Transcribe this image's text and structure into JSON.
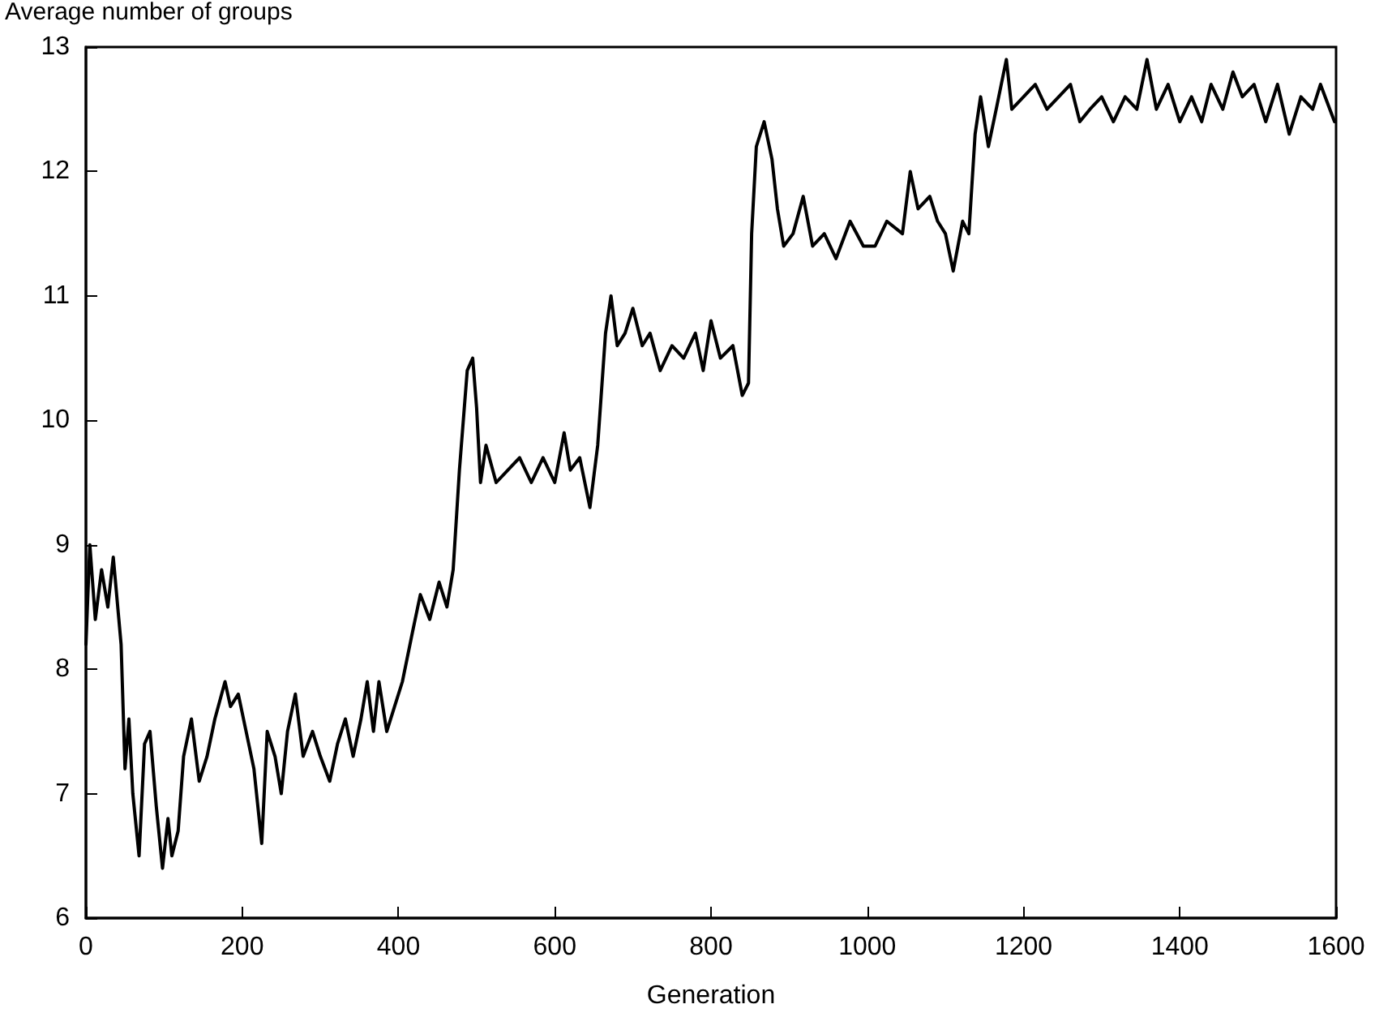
{
  "chart_data": {
    "type": "line",
    "ylabel": "Average number of groups",
    "xlabel": "Generation",
    "xlim": [
      0,
      1600
    ],
    "xticks": [
      0,
      200,
      400,
      600,
      800,
      1000,
      1200,
      1400,
      1600
    ],
    "ylim": [
      6,
      13
    ],
    "yticks": [
      6,
      7,
      8,
      9,
      10,
      11,
      12,
      13
    ],
    "grid": false,
    "marker": "none",
    "line_style": "solid",
    "series": [
      {
        "color": "#000000",
        "x": [
          0,
          5,
          12,
          20,
          28,
          35,
          45,
          50,
          55,
          60,
          68,
          75,
          82,
          90,
          98,
          105,
          110,
          118,
          125,
          135,
          145,
          155,
          165,
          178,
          185,
          195,
          205,
          215,
          225,
          232,
          242,
          250,
          258,
          268,
          278,
          290,
          300,
          312,
          322,
          332,
          342,
          352,
          360,
          368,
          375,
          385,
          395,
          405,
          418,
          428,
          440,
          452,
          462,
          470,
          478,
          488,
          495,
          500,
          505,
          512,
          525,
          540,
          555,
          570,
          585,
          600,
          612,
          620,
          632,
          645,
          655,
          665,
          672,
          680,
          690,
          700,
          712,
          722,
          735,
          750,
          765,
          780,
          790,
          800,
          812,
          828,
          840,
          848,
          852,
          858,
          868,
          878,
          885,
          893,
          905,
          918,
          930,
          945,
          960,
          978,
          995,
          1010,
          1025,
          1045,
          1055,
          1065,
          1080,
          1090,
          1100,
          1110,
          1122,
          1130,
          1138,
          1145,
          1155,
          1165,
          1178,
          1185,
          1200,
          1215,
          1230,
          1245,
          1260,
          1272,
          1285,
          1300,
          1315,
          1330,
          1345,
          1358,
          1370,
          1385,
          1400,
          1415,
          1428,
          1440,
          1455,
          1468,
          1480,
          1495,
          1510,
          1525,
          1540,
          1555,
          1570,
          1580,
          1592,
          1598
        ],
        "values": [
          8.2,
          9.0,
          8.4,
          8.8,
          8.5,
          8.9,
          8.2,
          7.2,
          7.6,
          7.0,
          6.5,
          7.4,
          7.5,
          6.9,
          6.4,
          6.8,
          6.5,
          6.7,
          7.3,
          7.6,
          7.1,
          7.3,
          7.6,
          7.9,
          7.7,
          7.8,
          7.5,
          7.2,
          6.6,
          7.5,
          7.3,
          7.0,
          7.5,
          7.8,
          7.3,
          7.5,
          7.3,
          7.1,
          7.4,
          7.6,
          7.3,
          7.6,
          7.9,
          7.5,
          7.9,
          7.5,
          7.7,
          7.9,
          8.3,
          8.6,
          8.4,
          8.7,
          8.5,
          8.8,
          9.6,
          10.4,
          10.5,
          10.1,
          9.5,
          9.8,
          9.5,
          9.6,
          9.7,
          9.5,
          9.7,
          9.5,
          9.9,
          9.6,
          9.7,
          9.3,
          9.8,
          10.7,
          11.0,
          10.6,
          10.7,
          10.9,
          10.6,
          10.7,
          10.4,
          10.6,
          10.5,
          10.7,
          10.4,
          10.8,
          10.5,
          10.6,
          10.2,
          10.3,
          11.5,
          12.2,
          12.4,
          12.1,
          11.7,
          11.4,
          11.5,
          11.8,
          11.4,
          11.5,
          11.3,
          11.6,
          11.4,
          11.4,
          11.6,
          11.5,
          12.0,
          11.7,
          11.8,
          11.6,
          11.5,
          11.2,
          11.6,
          11.5,
          12.3,
          12.6,
          12.2,
          12.5,
          12.9,
          12.5,
          12.6,
          12.7,
          12.5,
          12.6,
          12.7,
          12.4,
          12.5,
          12.6,
          12.4,
          12.6,
          12.5,
          12.9,
          12.5,
          12.7,
          12.4,
          12.6,
          12.4,
          12.7,
          12.5,
          12.8,
          12.6,
          12.7,
          12.4,
          12.7,
          12.3,
          12.6,
          12.5,
          12.7,
          12.5,
          12.4
        ]
      }
    ]
  }
}
